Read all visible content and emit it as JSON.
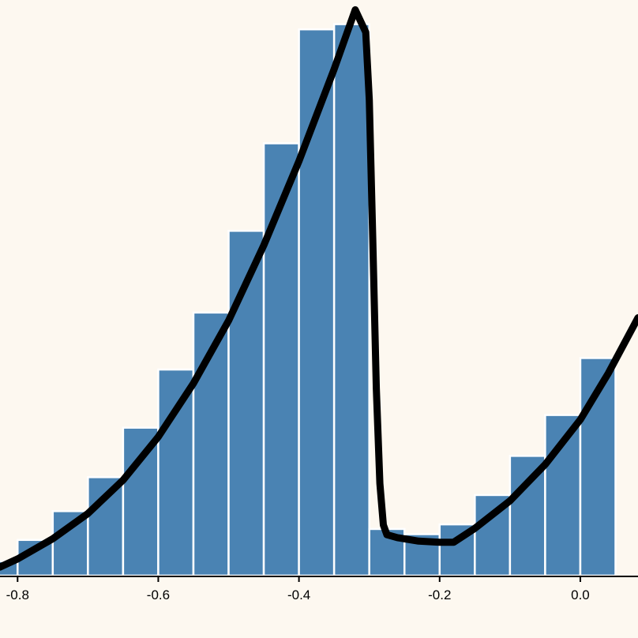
{
  "chart_data": {
    "type": "bar",
    "title": "",
    "xlabel": "",
    "ylabel": "",
    "x_ticks": [
      "-0.8",
      "-0.6",
      "-0.4",
      "-0.2",
      "0.0"
    ],
    "x_tick_values": [
      -0.8,
      -0.6,
      -0.4,
      -0.2,
      0.0
    ],
    "xlim": [
      -0.825,
      0.082
    ],
    "ylim": [
      0,
      1.0
    ],
    "bin_width": 0.05,
    "bins": [
      {
        "x0": -0.85,
        "x1": -0.8,
        "value": 0.025
      },
      {
        "x0": -0.8,
        "x1": -0.75,
        "value": 0.062
      },
      {
        "x0": -0.75,
        "x1": -0.7,
        "value": 0.112
      },
      {
        "x0": -0.7,
        "x1": -0.65,
        "value": 0.171
      },
      {
        "x0": -0.65,
        "x1": -0.6,
        "value": 0.257
      },
      {
        "x0": -0.6,
        "x1": -0.55,
        "value": 0.358
      },
      {
        "x0": -0.55,
        "x1": -0.5,
        "value": 0.457
      },
      {
        "x0": -0.5,
        "x1": -0.45,
        "value": 0.599
      },
      {
        "x0": -0.45,
        "x1": -0.4,
        "value": 0.751
      },
      {
        "x0": -0.4,
        "x1": -0.35,
        "value": 0.949
      },
      {
        "x0": -0.35,
        "x1": -0.3,
        "value": 0.958
      },
      {
        "x0": -0.3,
        "x1": -0.25,
        "value": 0.081
      },
      {
        "x0": -0.25,
        "x1": -0.2,
        "value": 0.072
      },
      {
        "x0": -0.2,
        "x1": -0.15,
        "value": 0.089
      },
      {
        "x0": -0.15,
        "x1": -0.1,
        "value": 0.14
      },
      {
        "x0": -0.1,
        "x1": -0.05,
        "value": 0.208
      },
      {
        "x0": -0.05,
        "x1": 0.0,
        "value": 0.279
      },
      {
        "x0": 0.0,
        "x1": 0.05,
        "value": 0.378
      }
    ],
    "density_curve": [
      [
        -0.825,
        0.015
      ],
      [
        -0.8,
        0.029
      ],
      [
        -0.75,
        0.064
      ],
      [
        -0.7,
        0.108
      ],
      [
        -0.65,
        0.166
      ],
      [
        -0.6,
        0.241
      ],
      [
        -0.55,
        0.334
      ],
      [
        -0.5,
        0.443
      ],
      [
        -0.45,
        0.574
      ],
      [
        -0.4,
        0.72
      ],
      [
        -0.35,
        0.88
      ],
      [
        -0.32,
        0.983
      ],
      [
        -0.305,
        0.944
      ],
      [
        -0.3,
        0.826
      ],
      [
        -0.295,
        0.584
      ],
      [
        -0.29,
        0.325
      ],
      [
        -0.285,
        0.16
      ],
      [
        -0.28,
        0.088
      ],
      [
        -0.275,
        0.071
      ],
      [
        -0.26,
        0.066
      ],
      [
        -0.23,
        0.06
      ],
      [
        -0.2,
        0.058
      ],
      [
        -0.18,
        0.058
      ],
      [
        -0.15,
        0.082
      ],
      [
        -0.1,
        0.13
      ],
      [
        -0.05,
        0.193
      ],
      [
        0.0,
        0.271
      ],
      [
        0.04,
        0.352
      ],
      [
        0.082,
        0.448
      ]
    ],
    "colors": {
      "bar": "#4a83b3",
      "bar_edge": "#ffffff",
      "curve": "#000000",
      "background": "#fdf8f0",
      "axis": "#000000"
    },
    "grid": false,
    "legend": "none"
  }
}
